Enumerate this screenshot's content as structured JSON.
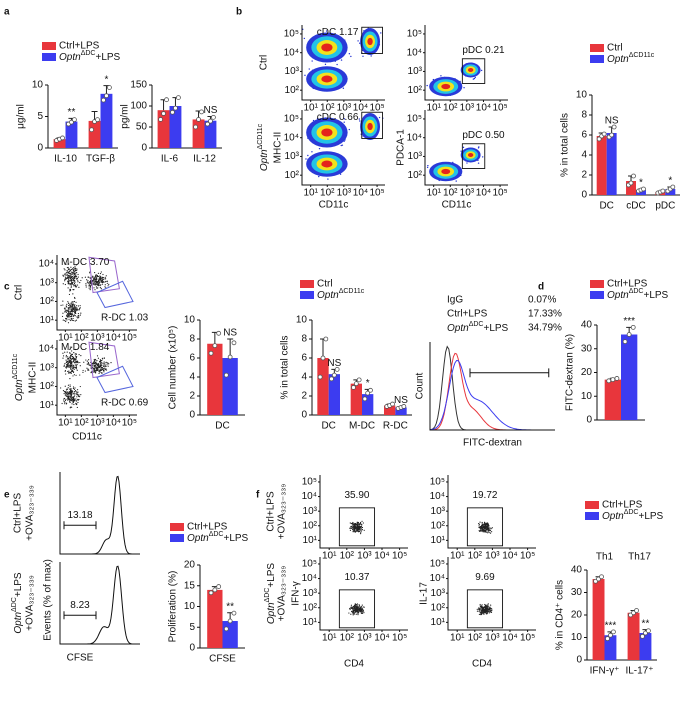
{
  "panel_labels": [
    "a",
    "b",
    "c",
    "d",
    "e",
    "f"
  ],
  "chart_data": [
    {
      "type": "bar",
      "ylabel": "μg/ml",
      "categories": [
        "IL-10",
        "TGF-β"
      ],
      "ylim": [
        0,
        10
      ],
      "yticks": [
        0,
        5,
        10
      ],
      "legend": "top",
      "series": [
        {
          "name": "Ctrl+LPS",
          "color": "#e8363c",
          "values": [
            1.4,
            4.3
          ],
          "errors": [
            0.2,
            1.5
          ],
          "points": [
            [
              1.2,
              1.4,
              1.6
            ],
            [
              2.9,
              4.2,
              4.5
            ]
          ]
        },
        {
          "name": "OptnΔDC+LPS",
          "color": "#3c3cf0",
          "values": [
            4.2,
            8.6
          ],
          "errors": [
            0.5,
            1.3
          ],
          "points": [
            [
              3.8,
              4.1,
              4.5
            ],
            [
              7.6,
              8.3,
              9.6
            ]
          ]
        }
      ],
      "annotations": [
        "**",
        "*"
      ]
    },
    {
      "type": "bar",
      "ylabel": "pg/ml",
      "categories": [
        "IL-6",
        "IL-12"
      ],
      "ylim": [
        0,
        150
      ],
      "yticks": [
        0,
        50,
        100,
        150
      ],
      "series": [
        {
          "color": "#e8363c",
          "values": [
            90,
            68
          ],
          "errors": [
            25,
            20
          ],
          "points": [
            [
              68,
              82,
              115
            ],
            [
              50,
              68,
              86
            ]
          ]
        },
        {
          "color": "#3c3cf0",
          "values": [
            100,
            65
          ],
          "errors": [
            20,
            10
          ],
          "points": [
            [
              85,
              95,
              120
            ],
            [
              57,
              64,
              73
            ]
          ]
        }
      ],
      "annotations": [
        null,
        "NS"
      ]
    },
    {
      "type": "bar",
      "ylabel": "% in total cells",
      "categories": [
        "DC",
        "cDC",
        "pDC"
      ],
      "ylim": [
        0,
        10
      ],
      "yticks": [
        0,
        2,
        4,
        6,
        8,
        10
      ],
      "legend": "top",
      "series": [
        {
          "name": "Ctrl",
          "color": "#e8363c",
          "values": [
            5.9,
            1.4,
            0.3
          ],
          "errors": [
            0.3,
            0.5,
            0.1
          ],
          "points": [
            [
              5.6,
              5.9,
              6.1
            ],
            [
              1.0,
              1.2,
              1.9
            ],
            [
              0.2,
              0.3,
              0.4
            ]
          ]
        },
        {
          "name": "OptnΔCD11c",
          "color": "#3c3cf0",
          "values": [
            6.2,
            0.5,
            0.6
          ],
          "errors": [
            0.6,
            0.1,
            0.2
          ],
          "points": [
            [
              5.8,
              6.0,
              6.8
            ],
            [
              0.4,
              0.5,
              0.6
            ],
            [
              0.4,
              0.6,
              0.8
            ]
          ]
        }
      ],
      "annotations": [
        "NS",
        "*",
        "*"
      ]
    },
    {
      "type": "bar",
      "ylabel": "Cell number (x10⁵)",
      "categories": [
        "DC"
      ],
      "ylim": [
        0,
        10
      ],
      "yticks": [
        0,
        2,
        4,
        6,
        8,
        10
      ],
      "series": [
        {
          "color": "#e8363c",
          "values": [
            7.5
          ],
          "errors": [
            1.2
          ],
          "points": [
            [
              6.5,
              7.3,
              8.6
            ]
          ]
        },
        {
          "color": "#3c3cf0",
          "values": [
            6.0
          ],
          "errors": [
            2.0
          ],
          "points": [
            [
              4.2,
              6.1,
              7.6
            ]
          ]
        }
      ],
      "annotations": [
        "NS"
      ]
    },
    {
      "type": "bar",
      "ylabel": "% in total cells",
      "categories": [
        "DC",
        "M-DC",
        "R-DC"
      ],
      "ylim": [
        0,
        10
      ],
      "yticks": [
        0,
        2,
        4,
        6,
        8,
        10
      ],
      "legend": "top",
      "series": [
        {
          "name": "Ctrl",
          "color": "#e8363c",
          "values": [
            6.0,
            3.3,
            1.0
          ],
          "errors": [
            2.0,
            0.4,
            0.15
          ],
          "points": [
            [
              4.0,
              6.0,
              8.0
            ],
            [
              2.9,
              3.3,
              3.7
            ],
            [
              0.9,
              1.0,
              1.15
            ]
          ]
        },
        {
          "name": "OptnΔCD11c",
          "color": "#3c3cf0",
          "values": [
            4.3,
            2.2,
            0.8
          ],
          "errors": [
            0.5,
            0.5,
            0.1
          ],
          "points": [
            [
              3.8,
              4.2,
              4.8
            ],
            [
              1.7,
              2.3,
              2.6
            ],
            [
              0.7,
              0.8,
              0.9
            ]
          ]
        }
      ],
      "annotations": [
        "NS",
        "*",
        "NS"
      ]
    },
    {
      "type": "bar",
      "ylabel": "FITC-dextran (%)",
      "categories": [
        null
      ],
      "ylim": [
        0,
        40
      ],
      "yticks": [
        0,
        10,
        20,
        30,
        40
      ],
      "legend": "top",
      "series": [
        {
          "name": "Ctrl+LPS",
          "color": "#e8363c",
          "values": [
            17
          ],
          "errors": [
            0.6
          ],
          "points": [
            [
              16.5,
              17,
              17.5
            ]
          ]
        },
        {
          "name": "OptnΔDC+LPS",
          "color": "#3c3cf0",
          "values": [
            36
          ],
          "errors": [
            3
          ],
          "points": [
            [
              33,
              36,
              39
            ]
          ]
        }
      ],
      "annotations": [
        "***"
      ]
    },
    {
      "type": "bar",
      "ylabel": "Proliferation (%)",
      "categories": [
        "CFSE"
      ],
      "ylim": [
        0,
        20
      ],
      "yticks": [
        0,
        5,
        10,
        15,
        20
      ],
      "legend": "top",
      "series": [
        {
          "name": "Ctrl+LPS",
          "color": "#e8363c",
          "values": [
            14
          ],
          "errors": [
            0.8
          ],
          "points": [
            [
              13.3,
              14,
              14.8
            ]
          ]
        },
        {
          "name": "OptnΔDC+LPS",
          "color": "#3c3cf0",
          "values": [
            6.5
          ],
          "errors": [
            2
          ],
          "points": [
            [
              4.6,
              6.5,
              8.4
            ]
          ]
        }
      ],
      "annotations": [
        "**"
      ]
    },
    {
      "type": "bar",
      "ylabel": "% in CD4⁺ cells",
      "categories": [
        "IFN-γ⁺",
        "IL-17⁺"
      ],
      "top_labels": [
        "Th1",
        "Th17"
      ],
      "ylim": [
        0,
        40
      ],
      "yticks": [
        0,
        10,
        20,
        30,
        40
      ],
      "legend": "top",
      "series": [
        {
          "name": "Ctrl+LPS",
          "color": "#e8363c",
          "values": [
            36,
            21
          ],
          "errors": [
            1,
            1
          ],
          "points": [
            [
              35,
              36,
              37
            ],
            [
              20,
              21,
              22
            ]
          ]
        },
        {
          "name": "OptnΔDC+LPS",
          "color": "#3c3cf0",
          "values": [
            11,
            12
          ],
          "errors": [
            1.5,
            1.5
          ],
          "points": [
            [
              9.5,
              11,
              12.5
            ],
            [
              10.5,
              12,
              13
            ]
          ]
        }
      ],
      "annotations": [
        "***",
        "**"
      ]
    }
  ],
  "flow": {
    "b": {
      "log": true,
      "xlim": [
        3,
        300000
      ],
      "ylim": [
        30,
        300000
      ],
      "xticks": [
        {
          "value": 10,
          "label": "10¹"
        },
        {
          "value": 100,
          "label": "10²"
        },
        {
          "value": 1000,
          "label": "10³"
        },
        {
          "value": 10000,
          "label": "10⁴"
        },
        {
          "value": 100000,
          "label": "10⁵"
        }
      ],
      "yticks": [
        {
          "value": 100,
          "label": "10²"
        },
        {
          "value": 1000,
          "label": "10³"
        },
        {
          "value": 10000,
          "label": "10⁴"
        },
        {
          "value": 100000,
          "label": "10⁵"
        }
      ],
      "rows": [
        [
          "Ctrl"
        ],
        [
          "OptnΔCD11c"
        ]
      ],
      "columns": [
        {
          "ylabel": "MHC-II",
          "xlabel": "CD11c",
          "gates": [
            [
              "cDC 1.17"
            ],
            [
              "cDC 0.66"
            ]
          ]
        },
        {
          "ylabel": "PDCA-1",
          "xlabel": "CD11c",
          "gates": [
            [
              "pDC 0.21"
            ],
            [
              "pDC 0.50"
            ]
          ]
        }
      ]
    },
    "c": {
      "log": true,
      "xlim": [
        3,
        300000
      ],
      "ylim": [
        3,
        30000
      ],
      "xticks": [
        {
          "value": 10,
          "label": "10¹"
        },
        {
          "value": 100,
          "label": "10²"
        },
        {
          "value": 1000,
          "label": "10³"
        },
        {
          "value": 10000,
          "label": "10⁴"
        },
        {
          "value": 100000,
          "label": "10⁵"
        }
      ],
      "yticks": [
        {
          "value": 10,
          "label": "10¹"
        },
        {
          "value": 100,
          "label": "10²"
        },
        {
          "value": 1000,
          "label": "10³"
        },
        {
          "value": 10000,
          "label": "10⁴"
        }
      ],
      "rows": [
        [
          "Ctrl"
        ],
        [
          "OptnΔCD11c"
        ]
      ],
      "columns": [
        {
          "ylabel": "MHC-II",
          "xlabel": "CD11c",
          "gates": [
            [
              "M-DC 3.70",
              "R-DC 1.03"
            ],
            [
              "M-DC 1.84",
              "R-DC 0.69"
            ]
          ]
        }
      ]
    },
    "f": {
      "log": true,
      "xlim": [
        3,
        300000
      ],
      "ylim": [
        3,
        300000
      ],
      "xticks": [
        {
          "value": 10,
          "label": "10¹"
        },
        {
          "value": 100,
          "label": "10²"
        },
        {
          "value": 1000,
          "label": "10³"
        },
        {
          "value": 10000,
          "label": "10⁴"
        },
        {
          "value": 100000,
          "label": "10⁵"
        }
      ],
      "yticks": [
        {
          "value": 10,
          "label": "10¹"
        },
        {
          "value": 100,
          "label": "10²"
        },
        {
          "value": 1000,
          "label": "10³"
        },
        {
          "value": 10000,
          "label": "10⁴"
        },
        {
          "value": 100000,
          "label": "10⁵"
        }
      ],
      "rows": [
        [
          "Ctrl+LPS",
          "+OVA₃₂₃₋₃₃₉"
        ],
        [
          "OptnΔDC+LPS",
          "+OVA₃₂₃₋₃₃₉"
        ]
      ],
      "columns": [
        {
          "ylabel": "IFN-γ",
          "xlabel": "CD4",
          "gates": [
            [
              "35.90"
            ],
            [
              "10.37"
            ]
          ]
        },
        {
          "ylabel": "IL-17",
          "xlabel": "CD4",
          "gates": [
            [
              "19.72"
            ],
            [
              "9.69"
            ]
          ]
        }
      ]
    }
  },
  "histograms": {
    "d": {
      "ylabel": "Count",
      "xlabel": "FITC-dextran",
      "labels": [
        {
          "text": "IgG",
          "value": "0.07%",
          "color": "#333333"
        },
        {
          "text": "Ctrl+LPS",
          "value": "17.33%",
          "color": "#e8363c"
        },
        {
          "text": "OptnΔDC+LPS",
          "value": "34.79%",
          "color": "#3c3cf0"
        }
      ]
    },
    "e": {
      "ylabel": "Events (% of max)",
      "xlabel": "CFSE",
      "rows": [
        [
          "Ctrl+LPS",
          "+OVA₃₂₃₋₃₃₉"
        ],
        [
          "OptnΔDC+LPS",
          "+OVA₃₂₃₋₃₃₉"
        ]
      ],
      "gates": [
        "13.18",
        "8.23"
      ]
    }
  }
}
